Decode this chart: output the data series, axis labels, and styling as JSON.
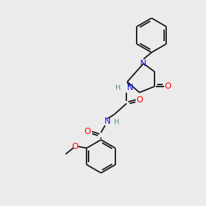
{
  "bg_color": "#ebebeb",
  "bond_color": "#1a1a1a",
  "N_color": "#1414ff",
  "O_color": "#ff0000",
  "H_color": "#4a9090",
  "figsize": [
    3.0,
    3.0
  ],
  "dpi": 100,
  "xlim": [
    0,
    10
  ],
  "ylim": [
    0,
    10
  ]
}
